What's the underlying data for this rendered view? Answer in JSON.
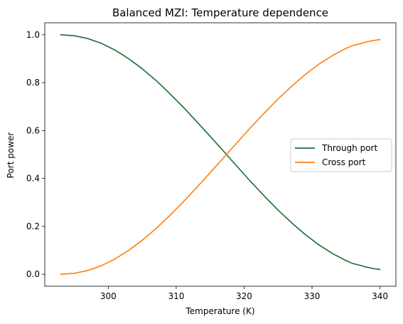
{
  "chart_data": {
    "type": "line",
    "title": "Balanced MZI: Temperature dependence",
    "xlabel": "Temperature (K)",
    "ylabel": "Port power",
    "xlim": [
      290.65,
      342.35
    ],
    "ylim": [
      -0.05,
      1.05
    ],
    "x_ticks": [
      300,
      310,
      320,
      330,
      340
    ],
    "y_ticks": [
      0.0,
      0.2,
      0.4,
      0.6,
      0.8,
      1.0
    ],
    "y_tick_labels": [
      "0.0",
      "0.2",
      "0.4",
      "0.6",
      "0.8",
      "1.0"
    ],
    "grid": false,
    "legend_position": "center-right",
    "x": [
      293,
      295,
      297,
      299,
      301,
      303,
      305,
      307,
      309,
      311,
      313,
      315,
      317,
      319,
      321,
      323,
      325,
      327,
      329,
      331,
      333,
      335,
      336,
      337,
      338,
      339,
      340
    ],
    "series": [
      {
        "name": "Through port",
        "color": "#1f6b35",
        "values": [
          1.0,
          0.996,
          0.984,
          0.964,
          0.936,
          0.9,
          0.858,
          0.81,
          0.756,
          0.699,
          0.638,
          0.576,
          0.513,
          0.449,
          0.386,
          0.326,
          0.268,
          0.215,
          0.166,
          0.123,
          0.087,
          0.057,
          0.045,
          0.038,
          0.03,
          0.024,
          0.02
        ]
      },
      {
        "name": "Cross port",
        "color": "#ff7f0e",
        "values": [
          0.0,
          0.004,
          0.016,
          0.036,
          0.064,
          0.1,
          0.142,
          0.19,
          0.244,
          0.301,
          0.362,
          0.424,
          0.487,
          0.551,
          0.614,
          0.674,
          0.732,
          0.785,
          0.834,
          0.877,
          0.913,
          0.943,
          0.955,
          0.962,
          0.97,
          0.976,
          0.98
        ]
      }
    ]
  }
}
